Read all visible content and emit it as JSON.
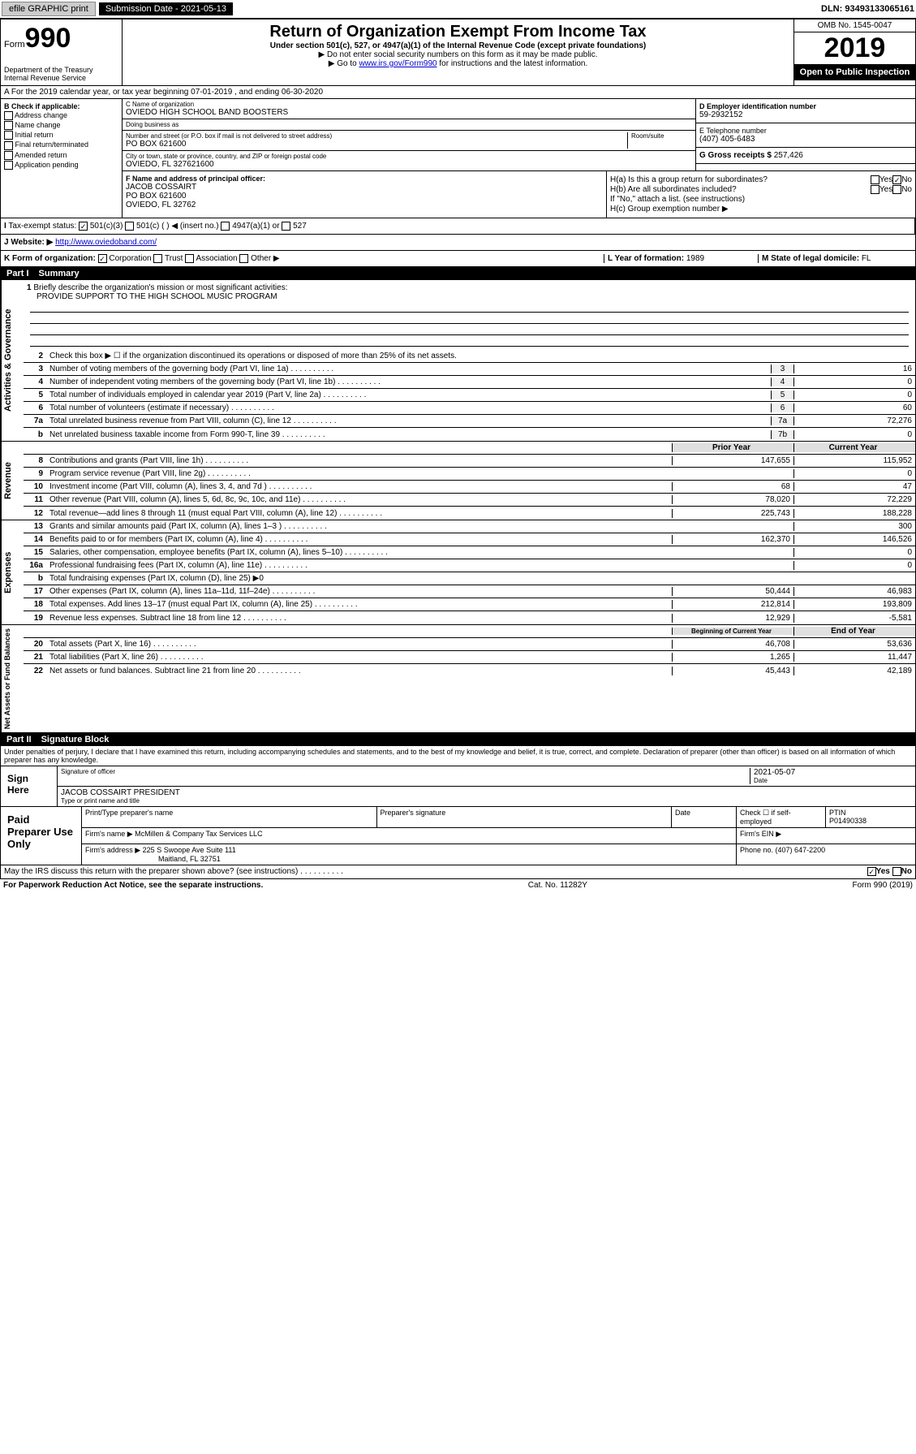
{
  "topbar": {
    "efile": "efile GRAPHIC print",
    "subdate_label": "Submission Date - 2021-05-13",
    "dln": "DLN: 93493133065161"
  },
  "header": {
    "form_word": "Form",
    "form_num": "990",
    "dept": "Department of the Treasury\nInternal Revenue Service",
    "title": "Return of Organization Exempt From Income Tax",
    "subtitle": "Under section 501(c), 527, or 4947(a)(1) of the Internal Revenue Code (except private foundations)",
    "note1": "▶ Do not enter social security numbers on this form as it may be made public.",
    "note2_pre": "▶ Go to ",
    "note2_link": "www.irs.gov/Form990",
    "note2_post": " for instructions and the latest information.",
    "omb": "OMB No. 1545-0047",
    "year": "2019",
    "open": "Open to Public Inspection"
  },
  "row_a": "A For the 2019 calendar year, or tax year beginning 07-01-2019   , and ending 06-30-2020",
  "col_b": {
    "title": "B Check if applicable:",
    "items": [
      "Address change",
      "Name change",
      "Initial return",
      "Final return/terminated",
      "Amended return",
      "Application pending"
    ]
  },
  "cd": {
    "c_label": "C Name of organization",
    "c_name": "OVIEDO HIGH SCHOOL BAND BOOSTERS",
    "dba_label": "Doing business as",
    "addr_label": "Number and street (or P.O. box if mail is not delivered to street address)",
    "room_label": "Room/suite",
    "addr": "PO BOX 621600",
    "city_label": "City or town, state or province, country, and ZIP or foreign postal code",
    "city": "OVIEDO, FL  327621600"
  },
  "de": {
    "d_label": "D Employer identification number",
    "d_val": "59-2932152",
    "e_label": "E Telephone number",
    "e_val": "(407) 405-6483",
    "g_label": "G Gross receipts $ ",
    "g_val": "257,426"
  },
  "f": {
    "label": "F Name and address of principal officer:",
    "name": "JACOB COSSAIRT",
    "addr1": "PO BOX 621600",
    "addr2": "OVIEDO, FL  32762"
  },
  "h": {
    "ha": "H(a)  Is this a group return for subordinates?",
    "hb": "H(b)  Are all subordinates included?",
    "hb_note": "If \"No,\" attach a list. (see instructions)",
    "hc": "H(c)  Group exemption number ▶"
  },
  "row_i": {
    "label": "Tax-exempt status:",
    "opts": [
      "501(c)(3)",
      "501(c) (  ) ◀ (insert no.)",
      "4947(a)(1) or",
      "527"
    ]
  },
  "row_j": {
    "label": "Website: ▶",
    "url": "http://www.oviedoband.com/"
  },
  "row_k": {
    "label": "K Form of organization:",
    "opts": [
      "Corporation",
      "Trust",
      "Association",
      "Other ▶"
    ],
    "l_label": "L Year of formation: ",
    "l_val": "1989",
    "m_label": "M State of legal domicile: ",
    "m_val": "FL"
  },
  "part1": {
    "num": "Part I",
    "title": "Summary"
  },
  "mission": {
    "num": "1",
    "label": "Briefly describe the organization's mission or most significant activities:",
    "text": "PROVIDE SUPPORT TO THE HIGH SCHOOL MUSIC PROGRAM"
  },
  "gov": {
    "vert": "Activities & Governance",
    "l2": "Check this box ▶ ☐  if the organization discontinued its operations or disposed of more than 25% of its net assets.",
    "lines": [
      {
        "n": "3",
        "d": "Number of voting members of the governing body (Part VI, line 1a)",
        "b": "3",
        "v": "16"
      },
      {
        "n": "4",
        "d": "Number of independent voting members of the governing body (Part VI, line 1b)",
        "b": "4",
        "v": "0"
      },
      {
        "n": "5",
        "d": "Total number of individuals employed in calendar year 2019 (Part V, line 2a)",
        "b": "5",
        "v": "0"
      },
      {
        "n": "6",
        "d": "Total number of volunteers (estimate if necessary)",
        "b": "6",
        "v": "60"
      },
      {
        "n": "7a",
        "d": "Total unrelated business revenue from Part VIII, column (C), line 12",
        "b": "7a",
        "v": "72,276"
      },
      {
        "n": "b",
        "d": "Net unrelated business taxable income from Form 990-T, line 39",
        "b": "7b",
        "v": "0"
      }
    ]
  },
  "rev": {
    "vert": "Revenue",
    "hdr1": "Prior Year",
    "hdr2": "Current Year",
    "lines": [
      {
        "n": "8",
        "d": "Contributions and grants (Part VIII, line 1h)",
        "v1": "147,655",
        "v2": "115,952"
      },
      {
        "n": "9",
        "d": "Program service revenue (Part VIII, line 2g)",
        "v1": "",
        "v2": "0"
      },
      {
        "n": "10",
        "d": "Investment income (Part VIII, column (A), lines 3, 4, and 7d )",
        "v1": "68",
        "v2": "47"
      },
      {
        "n": "11",
        "d": "Other revenue (Part VIII, column (A), lines 5, 6d, 8c, 9c, 10c, and 11e)",
        "v1": "78,020",
        "v2": "72,229"
      },
      {
        "n": "12",
        "d": "Total revenue—add lines 8 through 11 (must equal Part VIII, column (A), line 12)",
        "v1": "225,743",
        "v2": "188,228"
      }
    ]
  },
  "exp": {
    "vert": "Expenses",
    "lines": [
      {
        "n": "13",
        "d": "Grants and similar amounts paid (Part IX, column (A), lines 1–3 )",
        "v1": "",
        "v2": "300"
      },
      {
        "n": "14",
        "d": "Benefits paid to or for members (Part IX, column (A), line 4)",
        "v1": "162,370",
        "v2": "146,526"
      },
      {
        "n": "15",
        "d": "Salaries, other compensation, employee benefits (Part IX, column (A), lines 5–10)",
        "v1": "",
        "v2": "0"
      },
      {
        "n": "16a",
        "d": "Professional fundraising fees (Part IX, column (A), line 11e)",
        "v1": "",
        "v2": "0"
      },
      {
        "n": "b",
        "d": "Total fundraising expenses (Part IX, column (D), line 25) ▶0",
        "v1": "",
        "v2": ""
      },
      {
        "n": "17",
        "d": "Other expenses (Part IX, column (A), lines 11a–11d, 11f–24e)",
        "v1": "50,444",
        "v2": "46,983"
      },
      {
        "n": "18",
        "d": "Total expenses. Add lines 13–17 (must equal Part IX, column (A), line 25)",
        "v1": "212,814",
        "v2": "193,809"
      },
      {
        "n": "19",
        "d": "Revenue less expenses. Subtract line 18 from line 12",
        "v1": "12,929",
        "v2": "-5,581"
      }
    ]
  },
  "net": {
    "vert": "Net Assets or Fund Balances",
    "hdr1": "Beginning of Current Year",
    "hdr2": "End of Year",
    "lines": [
      {
        "n": "20",
        "d": "Total assets (Part X, line 16)",
        "v1": "46,708",
        "v2": "53,636"
      },
      {
        "n": "21",
        "d": "Total liabilities (Part X, line 26)",
        "v1": "1,265",
        "v2": "11,447"
      },
      {
        "n": "22",
        "d": "Net assets or fund balances. Subtract line 21 from line 20",
        "v1": "45,443",
        "v2": "42,189"
      }
    ]
  },
  "part2": {
    "num": "Part II",
    "title": "Signature Block"
  },
  "perjury": "Under penalties of perjury, I declare that I have examined this return, including accompanying schedules and statements, and to the best of my knowledge and belief, it is true, correct, and complete. Declaration of preparer (other than officer) is based on all information of which preparer has any knowledge.",
  "sign": {
    "label": "Sign Here",
    "sig_label": "Signature of officer",
    "date": "2021-05-07",
    "date_label": "Date",
    "name": "JACOB COSSAIRT PRESIDENT",
    "name_label": "Type or print name and title"
  },
  "paid": {
    "label": "Paid Preparer Use Only",
    "h1": "Print/Type preparer's name",
    "h2": "Preparer's signature",
    "h3": "Date",
    "h4_chk": "Check ☐ if self-employed",
    "h5": "PTIN",
    "ptin": "P01490338",
    "firm_label": "Firm's name    ▶",
    "firm": "McMillen & Company Tax Services LLC",
    "ein_label": "Firm's EIN ▶",
    "addr_label": "Firm's address ▶",
    "addr1": "225 S Swoope Ave Suite 111",
    "addr2": "Maitland, FL  32751",
    "phone_label": "Phone no. ",
    "phone": "(407) 647-2200"
  },
  "discuss": "May the IRS discuss this return with the preparer shown above? (see instructions)",
  "footer": {
    "l": "For Paperwork Reduction Act Notice, see the separate instructions.",
    "m": "Cat. No. 11282Y",
    "r": "Form 990 (2019)"
  }
}
